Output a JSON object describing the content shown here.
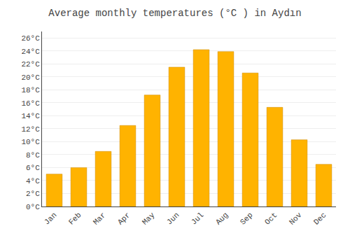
{
  "chart_data": {
    "type": "bar",
    "title": "Average monthly temperatures (°C ) in Aydın",
    "categories": [
      "Jan",
      "Feb",
      "Mar",
      "Apr",
      "May",
      "Jun",
      "Jul",
      "Aug",
      "Sep",
      "Oct",
      "Nov",
      "Dec"
    ],
    "values": [
      5.0,
      6.0,
      8.5,
      12.5,
      17.2,
      21.5,
      24.2,
      23.9,
      20.6,
      15.3,
      10.3,
      6.5
    ],
    "color": "#FFB300",
    "ylim": [
      0,
      27
    ],
    "yticks": [
      {
        "value": 0,
        "label": "0°C"
      },
      {
        "value": 2,
        "label": "2°C"
      },
      {
        "value": 4,
        "label": "4°C"
      },
      {
        "value": 6,
        "label": "6°C"
      },
      {
        "value": 8,
        "label": "8°C"
      },
      {
        "value": 10,
        "label": "10°C"
      },
      {
        "value": 12,
        "label": "12°C"
      },
      {
        "value": 14,
        "label": "14°C"
      },
      {
        "value": 16,
        "label": "16°C"
      },
      {
        "value": 18,
        "label": "18°C"
      },
      {
        "value": 20,
        "label": "20°C"
      },
      {
        "value": 22,
        "label": "22°C"
      },
      {
        "value": 24,
        "label": "24°C"
      },
      {
        "value": 26,
        "label": "26°C"
      }
    ],
    "grid": true
  }
}
